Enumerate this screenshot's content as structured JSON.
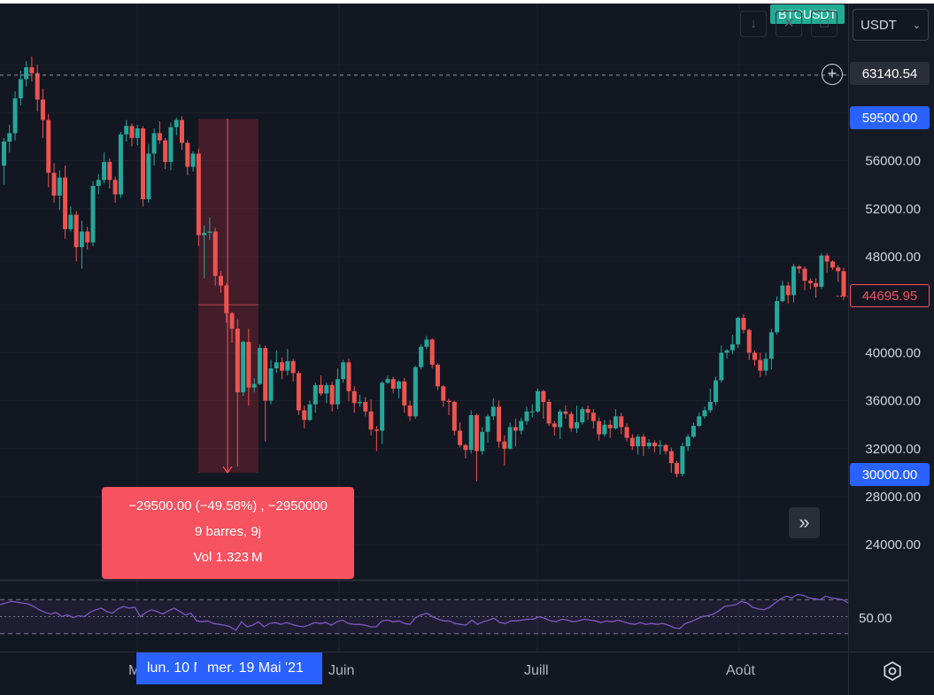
{
  "symbol": "BTCUSDT",
  "currency_selector": {
    "value": "USDT"
  },
  "price_axis": {
    "ticks": [
      "56000.00",
      "52000.00",
      "48000.00",
      "40000.00",
      "36000.00",
      "32000.00",
      "28000.00",
      "24000.00"
    ],
    "crosshair_price": "63140.54",
    "range_high_price": "59500.00",
    "range_low_price": "30000.00",
    "last_price": "44695.95"
  },
  "measure": {
    "line1": "−29500.00 (−49.58%) , −2950000",
    "line2": "9 barres, 9j",
    "line3": "Vol 1.323 M"
  },
  "rsi": {
    "level_label": "50.00"
  },
  "time_axis": {
    "labels": [
      "M",
      "Juin",
      "Juill",
      "Août"
    ],
    "start_tag": "lun. 10 Mai '21",
    "end_tag": "mer. 19 Mai '21"
  },
  "colors": {
    "up": "#26a69a",
    "down": "#ef5350",
    "background": "#131722",
    "accent": "#2962ff",
    "rsi": "#7e57c2"
  },
  "icons": {
    "scroll": "double-chevron-right-icon",
    "settings": "settings-icon",
    "add": "plus-circle-icon"
  },
  "chart_data": {
    "type": "candlestick",
    "ylim": [
      22000,
      66000
    ],
    "candles": [
      [
        55600,
        57600,
        54000,
        57900
      ],
      [
        57600,
        58300,
        56700,
        59000
      ],
      [
        58300,
        61200,
        57700,
        61800
      ],
      [
        61200,
        62800,
        60600,
        63500
      ],
      [
        62800,
        63800,
        62200,
        64300
      ],
      [
        63800,
        63300,
        62600,
        64700
      ],
      [
        63300,
        61100,
        60100,
        64000
      ],
      [
        61100,
        59400,
        57900,
        62000
      ],
      [
        59400,
        55000,
        53800,
        59900
      ],
      [
        55000,
        53100,
        52500,
        55800
      ],
      [
        53100,
        54600,
        51900,
        55200
      ],
      [
        54600,
        50300,
        49500,
        55600
      ],
      [
        50300,
        51500,
        50100,
        52200
      ],
      [
        51500,
        48800,
        47600,
        51800
      ],
      [
        48800,
        50100,
        47000,
        51000
      ],
      [
        50100,
        49200,
        48600,
        50500
      ],
      [
        49200,
        53900,
        48900,
        54300
      ],
      [
        53900,
        54400,
        53200,
        54900
      ],
      [
        54400,
        55900,
        54100,
        56700
      ],
      [
        55900,
        54400,
        53700,
        56200
      ],
      [
        54400,
        53200,
        52500,
        54700
      ],
      [
        53200,
        58200,
        52900,
        58400
      ],
      [
        58200,
        58900,
        57600,
        59400
      ],
      [
        58900,
        57900,
        57200,
        59100
      ],
      [
        57900,
        58700,
        57300,
        59000
      ],
      [
        58700,
        52800,
        52200,
        58900
      ],
      [
        52800,
        56600,
        52500,
        57400
      ],
      [
        56600,
        58300,
        55600,
        58700
      ],
      [
        58300,
        57700,
        57400,
        59300
      ],
      [
        57700,
        55900,
        55300,
        57900
      ],
      [
        55900,
        58800,
        55200,
        59200
      ],
      [
        58800,
        59400,
        58100,
        59600
      ],
      [
        59400,
        57500,
        56900,
        59700
      ],
      [
        57500,
        55500,
        54800,
        57700
      ],
      [
        55500,
        56600,
        55100,
        56800
      ],
      [
        56600,
        49800,
        48900,
        57000
      ],
      [
        49800,
        50000,
        46200,
        50600
      ],
      [
        50000,
        50100,
        49400,
        51300
      ],
      [
        50100,
        46400,
        45600,
        50400
      ],
      [
        46400,
        45600,
        45000,
        46800
      ],
      [
        45600,
        43300,
        42500,
        45800
      ],
      [
        43300,
        42000,
        40800,
        43400
      ],
      [
        42000,
        36700,
        30500,
        42800
      ],
      [
        36700,
        40900,
        36400,
        41000
      ],
      [
        40900,
        37100,
        35600,
        42000
      ],
      [
        37100,
        37400,
        36700,
        37900
      ],
      [
        37400,
        40400,
        37300,
        40700
      ],
      [
        40400,
        36000,
        32600,
        40600
      ],
      [
        36000,
        38700,
        35700,
        39400
      ],
      [
        38700,
        39200,
        38300,
        40200
      ],
      [
        39200,
        38500,
        37800,
        39600
      ],
      [
        38500,
        39300,
        38100,
        40300
      ],
      [
        39300,
        38300,
        37600,
        39500
      ],
      [
        38300,
        35200,
        34800,
        38500
      ],
      [
        35200,
        34400,
        33700,
        35600
      ],
      [
        34400,
        35700,
        34300,
        36000
      ],
      [
        35700,
        37300,
        35000,
        37500
      ],
      [
        37300,
        36600,
        36400,
        38100
      ],
      [
        36600,
        37300,
        35800,
        37500
      ],
      [
        37300,
        35700,
        35100,
        37600
      ],
      [
        35700,
        37800,
        35300,
        38700
      ],
      [
        37800,
        39200,
        37500,
        39400
      ],
      [
        39200,
        36800,
        36000,
        39500
      ],
      [
        36800,
        35800,
        35000,
        37200
      ],
      [
        35800,
        35900,
        35500,
        36500
      ],
      [
        35900,
        35100,
        34700,
        36300
      ],
      [
        35100,
        33600,
        33100,
        36100
      ],
      [
        33600,
        33500,
        31800,
        33900
      ],
      [
        33500,
        37500,
        32400,
        37600
      ],
      [
        37500,
        37800,
        37400,
        38100
      ],
      [
        37800,
        37000,
        36600,
        38000
      ],
      [
        37000,
        37600,
        36200,
        37700
      ],
      [
        37600,
        35600,
        35000,
        37900
      ],
      [
        35600,
        34700,
        34300,
        36000
      ],
      [
        34700,
        38800,
        34500,
        38900
      ],
      [
        38800,
        40500,
        38600,
        40700
      ],
      [
        40500,
        41100,
        40300,
        41400
      ],
      [
        41100,
        39000,
        38700,
        41200
      ],
      [
        39000,
        37200,
        36900,
        39100
      ],
      [
        37200,
        36000,
        35500,
        37300
      ],
      [
        36000,
        35900,
        34800,
        36200
      ],
      [
        35900,
        33500,
        33100,
        36000
      ],
      [
        33500,
        32300,
        32100,
        34200
      ],
      [
        32300,
        31900,
        31200,
        32400
      ],
      [
        31900,
        34800,
        31600,
        35200
      ],
      [
        34800,
        31800,
        29300,
        34900
      ],
      [
        31800,
        33400,
        31500,
        33800
      ],
      [
        33400,
        34700,
        32500,
        34900
      ],
      [
        34700,
        35500,
        34400,
        36200
      ],
      [
        35500,
        32600,
        32100,
        36000
      ],
      [
        32600,
        32000,
        30600,
        33100
      ],
      [
        32000,
        33800,
        31900,
        34200
      ],
      [
        33800,
        33500,
        32200,
        34500
      ],
      [
        33500,
        34300,
        33200,
        34600
      ],
      [
        34300,
        35100,
        34000,
        35500
      ],
      [
        35100,
        35100,
        34600,
        35700
      ],
      [
        35100,
        36800,
        35000,
        37000
      ],
      [
        36800,
        35900,
        34500,
        36900
      ],
      [
        35900,
        34100,
        33900,
        36100
      ],
      [
        34100,
        33800,
        33100,
        34300
      ],
      [
        33800,
        35100,
        32800,
        35300
      ],
      [
        35100,
        34900,
        34500,
        35600
      ],
      [
        34900,
        33700,
        33400,
        35100
      ],
      [
        33700,
        34200,
        33300,
        35600
      ],
      [
        34200,
        35300,
        34000,
        35500
      ],
      [
        35300,
        35000,
        34400,
        35600
      ],
      [
        35000,
        34300,
        33700,
        35300
      ],
      [
        34300,
        33200,
        32700,
        34600
      ],
      [
        33200,
        34000,
        33000,
        34400
      ],
      [
        34000,
        33700,
        32900,
        34400
      ],
      [
        33700,
        34700,
        33600,
        35300
      ],
      [
        34700,
        33800,
        33200,
        35000
      ],
      [
        33800,
        32900,
        32600,
        34100
      ],
      [
        32900,
        32200,
        31900,
        33200
      ],
      [
        32200,
        33000,
        31500,
        33200
      ],
      [
        33000,
        32200,
        31400,
        33200
      ],
      [
        32200,
        32500,
        32000,
        32800
      ],
      [
        32500,
        32200,
        31700,
        32700
      ],
      [
        32200,
        32300,
        31500,
        32700
      ],
      [
        32300,
        31800,
        31500,
        32400
      ],
      [
        31800,
        30800,
        30000,
        32100
      ],
      [
        30800,
        29900,
        29600,
        31000
      ],
      [
        29900,
        32200,
        29700,
        32500
      ],
      [
        32200,
        33000,
        31800,
        33200
      ],
      [
        33000,
        33900,
        32900,
        34200
      ],
      [
        33900,
        34700,
        33800,
        35000
      ],
      [
        34700,
        35200,
        34500,
        35500
      ],
      [
        35200,
        35900,
        35000,
        37000
      ],
      [
        35900,
        37700,
        35600,
        38000
      ],
      [
        37700,
        40000,
        37500,
        40600
      ],
      [
        40000,
        40200,
        39500,
        40300
      ],
      [
        40200,
        40700,
        39900,
        41500
      ],
      [
        40700,
        42900,
        40400,
        43000
      ],
      [
        42900,
        41900,
        41600,
        43200
      ],
      [
        41900,
        40000,
        39400,
        42000
      ],
      [
        40000,
        39400,
        38900,
        40200
      ],
      [
        39400,
        38500,
        38000,
        40000
      ],
      [
        38500,
        39500,
        38100,
        40000
      ],
      [
        39500,
        41700,
        38600,
        42000
      ],
      [
        41700,
        44300,
        41500,
        44700
      ],
      [
        44300,
        45600,
        44200,
        46000
      ],
      [
        45600,
        44800,
        44100,
        45900
      ],
      [
        44800,
        47200,
        44200,
        47400
      ],
      [
        47200,
        47000,
        46600,
        47300
      ],
      [
        47000,
        46000,
        45200,
        47200
      ],
      [
        46000,
        45800,
        45300,
        46200
      ],
      [
        45800,
        45500,
        44600,
        46200
      ],
      [
        45500,
        48100,
        45300,
        48300
      ],
      [
        48100,
        47600,
        46700,
        48300
      ],
      [
        47600,
        47100,
        46900,
        47700
      ],
      [
        47100,
        46800,
        45900,
        47300
      ],
      [
        46800,
        44700,
        44400,
        47100
      ]
    ],
    "measure": {
      "start_price": 59500.0,
      "end_price": 30000.0,
      "change": -29500.0,
      "change_pct": -49.58,
      "bars": 9
    },
    "crosshair_price": 63140.54,
    "last_price": 44695.95,
    "rsi": {
      "levels": [
        70,
        50,
        30
      ],
      "values": [
        64,
        66,
        68,
        67,
        66,
        65,
        62,
        58,
        55,
        53,
        55,
        50,
        52,
        49,
        51,
        50,
        55,
        58,
        60,
        56,
        54,
        59,
        62,
        60,
        61,
        50,
        55,
        58,
        56,
        53,
        57,
        60,
        56,
        52,
        54,
        45,
        44,
        45,
        42,
        41,
        40,
        38,
        34,
        44,
        38,
        40,
        44,
        38,
        42,
        43,
        41,
        43,
        41,
        39,
        38,
        40,
        43,
        42,
        43,
        40,
        44,
        46,
        42,
        41,
        41,
        40,
        38,
        38,
        45,
        46,
        44,
        45,
        42,
        41,
        49,
        52,
        54,
        50,
        47,
        45,
        45,
        42,
        41,
        40,
        46,
        41,
        44,
        46,
        48,
        43,
        42,
        45,
        45,
        46,
        47,
        47,
        50,
        48,
        45,
        44,
        47,
        46,
        44,
        45,
        47,
        46,
        45,
        43,
        45,
        44,
        46,
        44,
        42,
        41,
        43,
        41,
        42,
        41,
        42,
        40,
        37,
        36,
        42,
        44,
        47,
        50,
        51,
        53,
        57,
        62,
        63,
        64,
        68,
        66,
        61,
        59,
        58,
        61,
        66,
        71,
        74,
        72,
        76,
        75,
        72,
        71,
        70,
        74,
        72,
        71,
        70,
        66
      ]
    }
  }
}
